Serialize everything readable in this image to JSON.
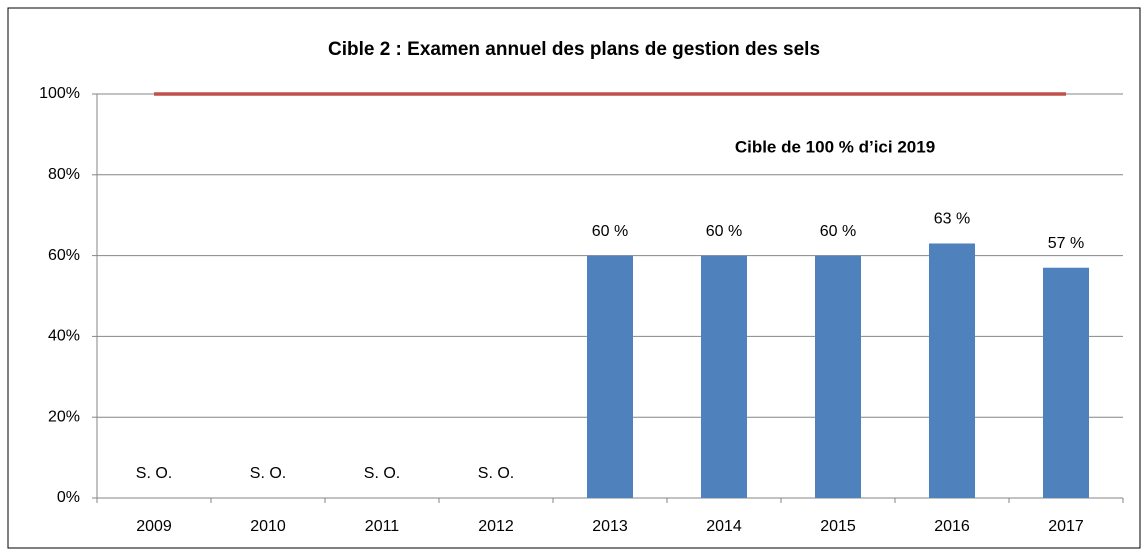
{
  "chart_data": {
    "type": "bar",
    "title": "Cible 2 : Examen annuel des plans de gestion des sels",
    "categories": [
      "2009",
      "2010",
      "2011",
      "2012",
      "2013",
      "2014",
      "2015",
      "2016",
      "2017"
    ],
    "values": [
      null,
      null,
      null,
      null,
      60,
      60,
      60,
      63,
      57
    ],
    "value_labels": [
      "S. O.",
      "S. O.",
      "S. O.",
      "S. O.",
      "60 %",
      "60 %",
      "60 %",
      "63 %",
      "57 %"
    ],
    "color": "#4f81bd",
    "ylim": [
      0,
      100
    ],
    "yticks": [
      {
        "value": 0,
        "label": "0%"
      },
      {
        "value": 20,
        "label": "20%"
      },
      {
        "value": 40,
        "label": "40%"
      },
      {
        "value": 60,
        "label": "60%"
      },
      {
        "value": 80,
        "label": "80%"
      },
      {
        "value": 100,
        "label": "100%"
      }
    ],
    "grid": true,
    "target": {
      "value": 100,
      "label": "Cible de 100 % d’ici 2019",
      "color": "#c0504d"
    }
  }
}
